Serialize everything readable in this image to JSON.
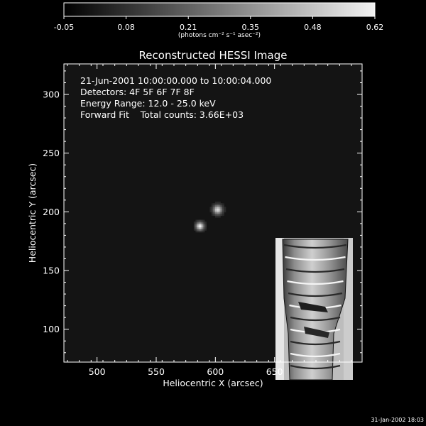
{
  "colorbar": {
    "tick_labels": [
      "-0.05",
      "0.08",
      "0.21",
      "0.35",
      "0.48",
      "0.62"
    ],
    "range": [
      -0.05,
      0.62
    ],
    "unit_label": "(photons cm⁻² s⁻¹ asec⁻²)",
    "colors": {
      "low": "#000000",
      "high": "#f2f2f2"
    }
  },
  "chart_data": {
    "type": "heatmap",
    "title": "Reconstructed HESSI Image",
    "xlabel": "Heliocentric X (arcsec)",
    "ylabel": "Heliocentric Y (arcsec)",
    "xlim": [
      472,
      724
    ],
    "ylim": [
      72,
      326
    ],
    "x_ticks": [
      500,
      550,
      600,
      650
    ],
    "y_ticks": [
      100,
      150,
      200,
      250,
      300
    ],
    "x_tick_labels": [
      "500",
      "550",
      "600",
      "650"
    ],
    "y_tick_labels": [
      "100",
      "150",
      "200",
      "250",
      "300"
    ],
    "background_value": 0.03,
    "sources": [
      {
        "x": 602,
        "y": 202,
        "peak": 0.56,
        "sigma": 2.6
      },
      {
        "x": 587,
        "y": 188,
        "peak": 0.62,
        "sigma": 2.3
      }
    ],
    "annotations": [
      "21-Jun-2001 10:00:00.000 to 10:00:04.000",
      "Detectors: 4F 5F 6F 7F 8F",
      "Energy Range: 12.0 - 25.0 keV",
      "Forward Fit    Total counts: 3.66E+03"
    ]
  },
  "footer": {
    "timestamp": "31-Jan-2002 18:03"
  },
  "colors": {
    "background": "#000000",
    "plot_background": "#141414",
    "axes": "#ffffff"
  }
}
